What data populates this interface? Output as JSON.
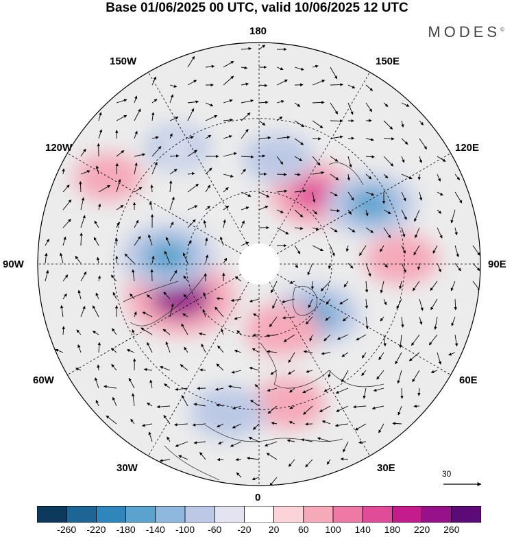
{
  "title": "Base 01/06/2025 00 UTC, valid 10/06/2025 12 UTC",
  "brand": "MODES",
  "brand_mark": "©",
  "longitude_labels": {
    "n180": "180",
    "w150": "150W",
    "e150": "150E",
    "w120": "120W",
    "e120": "120E",
    "w90": "90W",
    "e90": "90E",
    "w60": "60W",
    "e60": "60E",
    "w30": "30W",
    "e30": "30E",
    "s0": "0"
  },
  "reference_vector": "30",
  "colorbar": {
    "ticks": [
      "-260",
      "-220",
      "-180",
      "-140",
      "-100",
      "-60",
      "-20",
      "20",
      "60",
      "100",
      "140",
      "180",
      "220",
      "260"
    ],
    "colors": [
      "#0d3a5c",
      "#1c6594",
      "#2f86bb",
      "#5aa3cf",
      "#8fb8df",
      "#bcc9e6",
      "#e3e3f2",
      "#ffffff",
      "#fbd3d8",
      "#f6a9b9",
      "#ee79a4",
      "#e14c98",
      "#c51c8c",
      "#96118a",
      "#5b0a77"
    ]
  },
  "anomaly_centers": [
    {
      "lon": -67,
      "lat_colat": 27,
      "value": 240
    },
    {
      "lon": -95,
      "lat_colat": 29,
      "value": -170
    },
    {
      "lon": 142,
      "lat_colat": 28,
      "value": 150
    },
    {
      "lon": 118,
      "lat_colat": 40,
      "value": -160
    },
    {
      "lon": 92,
      "lat_colat": 45,
      "value": 80
    },
    {
      "lon": 48,
      "lat_colat": 24,
      "value": -150
    },
    {
      "lon": 20,
      "lat_colat": 22,
      "value": 90
    },
    {
      "lon": 12,
      "lat_colat": 45,
      "value": 80
    },
    {
      "lon": -12,
      "lat_colat": 48,
      "value": -90
    },
    {
      "lon": 170,
      "lat_colat": 34,
      "value": -70
    },
    {
      "lon": -120,
      "lat_colat": 55,
      "value": 60
    },
    {
      "lon": -145,
      "lat_colat": 45,
      "value": -50
    }
  ]
}
